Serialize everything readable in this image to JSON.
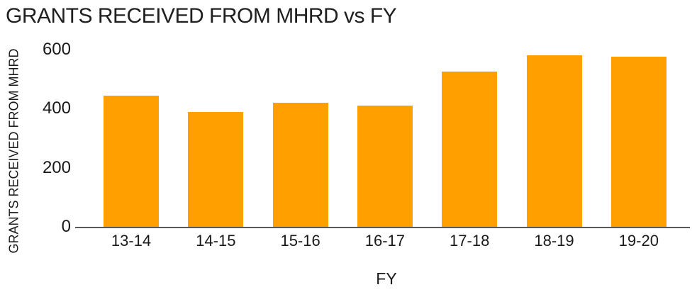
{
  "page": {
    "background": "#FFFFFF"
  },
  "chart_data": {
    "type": "bar",
    "title": "GRANTS RECEIVED FROM MHRD vs FY",
    "categories": [
      "13-14",
      "14-15",
      "15-16",
      "16-17",
      "17-18",
      "18-19",
      "19-20"
    ],
    "values": [
      445,
      390,
      420,
      410,
      525,
      580,
      575
    ],
    "xlabel": "FY",
    "ylabel": "GRANTS RECEIVED FROM MHRD",
    "yticks": [
      0,
      200,
      400,
      600
    ],
    "ylim": [
      0,
      600
    ],
    "grid": false,
    "legend": "none",
    "bar_color": "#FFA000",
    "axis_line_color": "#5A5A5A",
    "text_color": "#1A1A1A"
  }
}
